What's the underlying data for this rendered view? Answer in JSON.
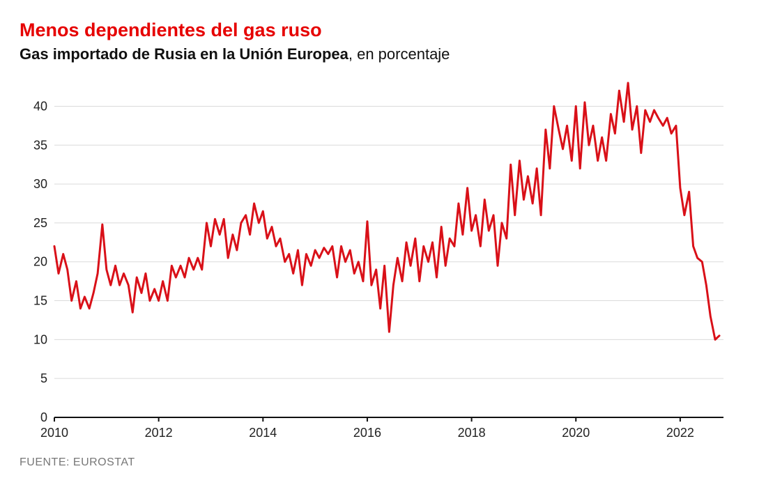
{
  "title": "Menos dependientes del gas ruso",
  "subtitle_bold": "Gas importado de Rusia en la Unión Europea",
  "subtitle_rest": ", en porcentaje",
  "footer": "FUENTE: EUROSTAT",
  "chart": {
    "type": "line",
    "line_color": "#d91018",
    "line_width": 3,
    "background_color": "#ffffff",
    "grid_color": "#dadada",
    "axis_color": "#111111",
    "tick_font_px": 18,
    "title_color": "#e60000",
    "subtitle_color": "#111111",
    "footer_color": "#777777",
    "y": {
      "min": 0,
      "max": 43,
      "ticks": [
        0,
        5,
        10,
        15,
        20,
        25,
        30,
        35,
        40
      ]
    },
    "x": {
      "min": 2010.0,
      "max": 2022.83,
      "ticks": [
        2010,
        2012,
        2014,
        2016,
        2018,
        2020,
        2022
      ]
    },
    "series": [
      {
        "name": "russia_gas_share",
        "points": [
          [
            2010.0,
            22.0
          ],
          [
            2010.08,
            18.5
          ],
          [
            2010.17,
            21.0
          ],
          [
            2010.25,
            19.0
          ],
          [
            2010.33,
            15.0
          ],
          [
            2010.42,
            17.5
          ],
          [
            2010.5,
            14.0
          ],
          [
            2010.58,
            15.5
          ],
          [
            2010.67,
            14.0
          ],
          [
            2010.75,
            16.0
          ],
          [
            2010.83,
            18.5
          ],
          [
            2010.92,
            24.8
          ],
          [
            2011.0,
            19.0
          ],
          [
            2011.08,
            17.0
          ],
          [
            2011.17,
            19.5
          ],
          [
            2011.25,
            17.0
          ],
          [
            2011.33,
            18.5
          ],
          [
            2011.42,
            17.0
          ],
          [
            2011.5,
            13.5
          ],
          [
            2011.58,
            18.0
          ],
          [
            2011.67,
            16.0
          ],
          [
            2011.75,
            18.5
          ],
          [
            2011.83,
            15.0
          ],
          [
            2011.92,
            16.5
          ],
          [
            2012.0,
            15.0
          ],
          [
            2012.08,
            17.5
          ],
          [
            2012.17,
            15.0
          ],
          [
            2012.25,
            19.5
          ],
          [
            2012.33,
            18.0
          ],
          [
            2012.42,
            19.5
          ],
          [
            2012.5,
            18.0
          ],
          [
            2012.58,
            20.5
          ],
          [
            2012.67,
            19.0
          ],
          [
            2012.75,
            20.5
          ],
          [
            2012.83,
            19.0
          ],
          [
            2012.92,
            25.0
          ],
          [
            2013.0,
            22.0
          ],
          [
            2013.08,
            25.5
          ],
          [
            2013.17,
            23.5
          ],
          [
            2013.25,
            25.5
          ],
          [
            2013.33,
            20.5
          ],
          [
            2013.42,
            23.5
          ],
          [
            2013.5,
            21.5
          ],
          [
            2013.58,
            25.0
          ],
          [
            2013.67,
            26.0
          ],
          [
            2013.75,
            23.5
          ],
          [
            2013.83,
            27.5
          ],
          [
            2013.92,
            25.0
          ],
          [
            2014.0,
            26.5
          ],
          [
            2014.08,
            23.0
          ],
          [
            2014.17,
            24.5
          ],
          [
            2014.25,
            22.0
          ],
          [
            2014.33,
            23.0
          ],
          [
            2014.42,
            20.0
          ],
          [
            2014.5,
            21.0
          ],
          [
            2014.58,
            18.5
          ],
          [
            2014.67,
            21.5
          ],
          [
            2014.75,
            17.0
          ],
          [
            2014.83,
            21.0
          ],
          [
            2014.92,
            19.5
          ],
          [
            2015.0,
            21.5
          ],
          [
            2015.08,
            20.5
          ],
          [
            2015.17,
            21.8
          ],
          [
            2015.25,
            21.0
          ],
          [
            2015.33,
            22.0
          ],
          [
            2015.42,
            18.0
          ],
          [
            2015.5,
            22.0
          ],
          [
            2015.58,
            20.0
          ],
          [
            2015.67,
            21.5
          ],
          [
            2015.75,
            18.5
          ],
          [
            2015.83,
            20.0
          ],
          [
            2015.92,
            17.5
          ],
          [
            2016.0,
            25.2
          ],
          [
            2016.08,
            17.0
          ],
          [
            2016.17,
            19.0
          ],
          [
            2016.25,
            14.0
          ],
          [
            2016.33,
            19.5
          ],
          [
            2016.42,
            11.0
          ],
          [
            2016.5,
            17.0
          ],
          [
            2016.58,
            20.5
          ],
          [
            2016.67,
            17.5
          ],
          [
            2016.75,
            22.5
          ],
          [
            2016.83,
            19.5
          ],
          [
            2016.92,
            23.0
          ],
          [
            2017.0,
            17.5
          ],
          [
            2017.08,
            22.0
          ],
          [
            2017.17,
            20.0
          ],
          [
            2017.25,
            22.5
          ],
          [
            2017.33,
            18.0
          ],
          [
            2017.42,
            24.5
          ],
          [
            2017.5,
            19.5
          ],
          [
            2017.58,
            23.0
          ],
          [
            2017.67,
            22.0
          ],
          [
            2017.75,
            27.5
          ],
          [
            2017.83,
            23.5
          ],
          [
            2017.92,
            29.5
          ],
          [
            2018.0,
            24.0
          ],
          [
            2018.08,
            26.0
          ],
          [
            2018.17,
            22.0
          ],
          [
            2018.25,
            28.0
          ],
          [
            2018.33,
            24.0
          ],
          [
            2018.42,
            26.0
          ],
          [
            2018.5,
            19.5
          ],
          [
            2018.58,
            25.0
          ],
          [
            2018.67,
            23.0
          ],
          [
            2018.75,
            32.5
          ],
          [
            2018.83,
            26.0
          ],
          [
            2018.92,
            33.0
          ],
          [
            2019.0,
            28.0
          ],
          [
            2019.08,
            31.0
          ],
          [
            2019.17,
            27.5
          ],
          [
            2019.25,
            32.0
          ],
          [
            2019.33,
            26.0
          ],
          [
            2019.42,
            37.0
          ],
          [
            2019.5,
            32.0
          ],
          [
            2019.58,
            40.0
          ],
          [
            2019.67,
            37.0
          ],
          [
            2019.75,
            34.5
          ],
          [
            2019.83,
            37.5
          ],
          [
            2019.92,
            33.0
          ],
          [
            2020.0,
            40.0
          ],
          [
            2020.08,
            32.0
          ],
          [
            2020.17,
            40.5
          ],
          [
            2020.25,
            35.0
          ],
          [
            2020.33,
            37.5
          ],
          [
            2020.42,
            33.0
          ],
          [
            2020.5,
            36.0
          ],
          [
            2020.58,
            33.0
          ],
          [
            2020.67,
            39.0
          ],
          [
            2020.75,
            36.5
          ],
          [
            2020.83,
            42.0
          ],
          [
            2020.92,
            38.0
          ],
          [
            2021.0,
            43.0
          ],
          [
            2021.08,
            37.0
          ],
          [
            2021.17,
            40.0
          ],
          [
            2021.25,
            34.0
          ],
          [
            2021.33,
            39.5
          ],
          [
            2021.42,
            38.0
          ],
          [
            2021.5,
            39.5
          ],
          [
            2021.58,
            38.5
          ],
          [
            2021.67,
            37.5
          ],
          [
            2021.75,
            38.5
          ],
          [
            2021.83,
            36.5
          ],
          [
            2021.92,
            37.5
          ],
          [
            2022.0,
            29.5
          ],
          [
            2022.08,
            26.0
          ],
          [
            2022.17,
            29.0
          ],
          [
            2022.25,
            22.0
          ],
          [
            2022.33,
            20.5
          ],
          [
            2022.42,
            20.0
          ],
          [
            2022.5,
            17.0
          ],
          [
            2022.58,
            13.0
          ],
          [
            2022.67,
            10.0
          ],
          [
            2022.75,
            10.5
          ]
        ]
      }
    ]
  }
}
